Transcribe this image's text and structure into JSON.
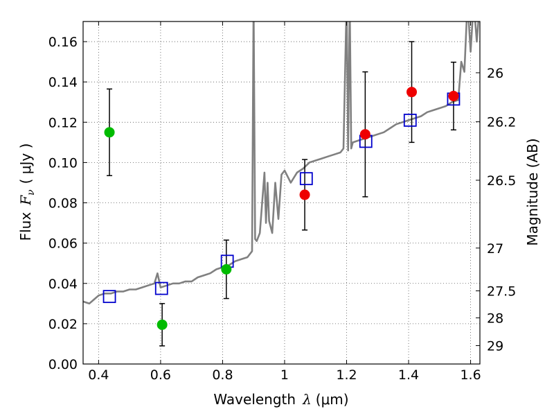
{
  "chart_data": {
    "type": "scatter",
    "xlabel": {
      "prefix": "Wavelength",
      "symbol": "λ",
      "unit": "(μm)"
    },
    "ylabel": {
      "prefix": "Flux",
      "symbol": "F",
      "subscript": "ν",
      "unit": "( μJy )"
    },
    "y2label": "Magnitude (AB)",
    "xlim": [
      0.35,
      1.63
    ],
    "ylim": [
      0.0,
      0.17
    ],
    "grid": true,
    "x_ticks": [
      0.4,
      0.6,
      0.8,
      1.0,
      1.2,
      1.4,
      1.6
    ],
    "x_tick_labels": [
      "0.4",
      "0.6",
      "0.8",
      "1",
      "1.2",
      "1.4",
      "1.6"
    ],
    "y_ticks": [
      0.0,
      0.02,
      0.04,
      0.06,
      0.08,
      0.1,
      0.12,
      0.14,
      0.16
    ],
    "y_tick_labels": [
      "0.00",
      "0.02",
      "0.04",
      "0.06",
      "0.08",
      "0.10",
      "0.12",
      "0.14",
      "0.16"
    ],
    "y2_ticks": [
      26,
      26.2,
      26.5,
      27,
      27.5,
      28,
      29
    ],
    "y2_tick_labels": [
      "26",
      "26.2",
      "26.5",
      "27",
      "27.5",
      "28",
      "29"
    ],
    "colors": {
      "spectrum": "#808080",
      "green_points": "#00bb00",
      "red_points": "#ee0000",
      "model_squares": "#0000cc",
      "errorbars": "#000000",
      "grid": "#555555"
    },
    "spectrum": {
      "x": [
        0.35,
        0.37,
        0.385,
        0.4,
        0.42,
        0.44,
        0.46,
        0.48,
        0.5,
        0.52,
        0.54,
        0.56,
        0.58,
        0.59,
        0.6,
        0.62,
        0.64,
        0.66,
        0.68,
        0.7,
        0.72,
        0.74,
        0.76,
        0.78,
        0.8,
        0.82,
        0.84,
        0.86,
        0.88,
        0.895,
        0.9,
        0.905,
        0.91,
        0.92,
        0.935,
        0.94,
        0.945,
        0.95,
        0.96,
        0.97,
        0.98,
        0.99,
        1.0,
        1.02,
        1.04,
        1.06,
        1.08,
        1.1,
        1.12,
        1.14,
        1.16,
        1.18,
        1.19,
        1.2,
        1.205,
        1.21,
        1.215,
        1.22,
        1.24,
        1.26,
        1.28,
        1.3,
        1.32,
        1.34,
        1.36,
        1.38,
        1.4,
        1.42,
        1.44,
        1.46,
        1.48,
        1.5,
        1.52,
        1.54,
        1.56,
        1.57,
        1.58,
        1.59,
        1.6,
        1.61,
        1.62,
        1.63
      ],
      "y": [
        0.031,
        0.03,
        0.032,
        0.034,
        0.035,
        0.035,
        0.036,
        0.036,
        0.037,
        0.037,
        0.038,
        0.039,
        0.04,
        0.045,
        0.038,
        0.039,
        0.04,
        0.04,
        0.041,
        0.041,
        0.043,
        0.044,
        0.045,
        0.047,
        0.048,
        0.049,
        0.051,
        0.052,
        0.053,
        0.056,
        0.18,
        0.062,
        0.061,
        0.065,
        0.095,
        0.07,
        0.09,
        0.071,
        0.065,
        0.09,
        0.072,
        0.094,
        0.096,
        0.09,
        0.095,
        0.097,
        0.1,
        0.101,
        0.102,
        0.103,
        0.104,
        0.105,
        0.107,
        0.18,
        0.106,
        0.18,
        0.107,
        0.11,
        0.111,
        0.112,
        0.113,
        0.114,
        0.115,
        0.117,
        0.119,
        0.12,
        0.121,
        0.122,
        0.123,
        0.125,
        0.126,
        0.127,
        0.128,
        0.13,
        0.131,
        0.15,
        0.145,
        0.18,
        0.155,
        0.18,
        0.16,
        0.18
      ]
    },
    "series": [
      {
        "x": [
          0.435,
          0.605,
          0.812
        ],
        "y": [
          0.115,
          0.0195,
          0.047
        ],
        "yerr": [
          0.0215,
          0.0105,
          0.0145
        ]
      },
      {
        "x": [
          1.065,
          1.26,
          1.41,
          1.545
        ],
        "y": [
          0.084,
          0.114,
          0.135,
          0.133
        ],
        "yerr": [
          0.0175,
          0.031,
          0.025,
          0.0168
        ]
      },
      {
        "x": [
          0.435,
          0.603,
          0.815,
          1.07,
          1.262,
          1.405,
          1.545
        ],
        "y": [
          0.0335,
          0.0375,
          0.051,
          0.092,
          0.1105,
          0.121,
          0.1315
        ]
      }
    ]
  }
}
